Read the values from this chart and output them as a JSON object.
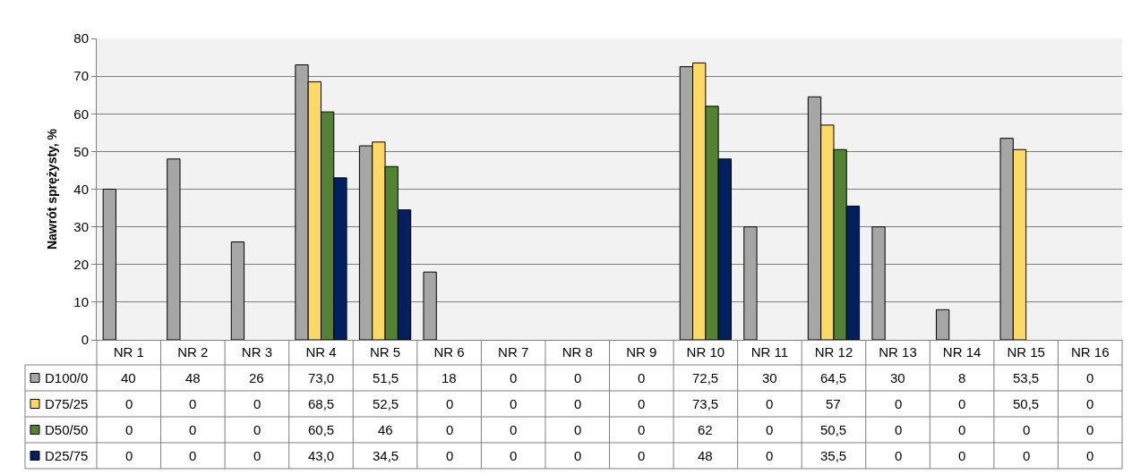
{
  "chart_data": {
    "type": "bar",
    "ylabel": "Nawrót sprężysty, %",
    "categories": [
      "NR 1",
      "NR 2",
      "NR 3",
      "NR 4",
      "NR 5",
      "NR 6",
      "NR 7",
      "NR 8",
      "NR 9",
      "NR 10",
      "NR 11",
      "NR 12",
      "NR 13",
      "NR 14",
      "NR 15",
      "NR 16"
    ],
    "series": [
      {
        "name": "D100/0",
        "color": "#a6a6a6",
        "values": [
          40,
          48,
          26,
          73.0,
          51.5,
          18,
          0,
          0,
          0,
          72.5,
          30,
          64.5,
          30,
          8,
          53.5,
          0
        ],
        "value_labels": [
          "40",
          "48",
          "26",
          "73,0",
          "51,5",
          "18",
          "0",
          "0",
          "0",
          "72,5",
          "30",
          "64,5",
          "30",
          "8",
          "53,5",
          "0"
        ]
      },
      {
        "name": "D75/25",
        "color": "#ffd966",
        "values": [
          0,
          0,
          0,
          68.5,
          52.5,
          0,
          0,
          0,
          0,
          73.5,
          0,
          57,
          0,
          0,
          50.5,
          0
        ],
        "value_labels": [
          "0",
          "0",
          "0",
          "68,5",
          "52,5",
          "0",
          "0",
          "0",
          "0",
          "73,5",
          "0",
          "57",
          "0",
          "0",
          "50,5",
          "0"
        ]
      },
      {
        "name": "D50/50",
        "color": "#548235",
        "values": [
          0,
          0,
          0,
          60.5,
          46,
          0,
          0,
          0,
          0,
          62,
          0,
          50.5,
          0,
          0,
          0,
          0
        ],
        "value_labels": [
          "0",
          "0",
          "0",
          "60,5",
          "46",
          "0",
          "0",
          "0",
          "0",
          "62",
          "0",
          "50,5",
          "0",
          "0",
          "0",
          "0"
        ]
      },
      {
        "name": "D25/75",
        "color": "#002060",
        "values": [
          0,
          0,
          0,
          43.0,
          34.5,
          0,
          0,
          0,
          0,
          48,
          0,
          35.5,
          0,
          0,
          0,
          0
        ],
        "value_labels": [
          "0",
          "0",
          "0",
          "43,0",
          "34,5",
          "0",
          "0",
          "0",
          "0",
          "48",
          "0",
          "35,5",
          "0",
          "0",
          "0",
          "0"
        ]
      }
    ],
    "ylim": [
      0,
      80
    ],
    "yticks": [
      0,
      10,
      20,
      30,
      40,
      50,
      60,
      70,
      80
    ],
    "grid": "y",
    "legend": "bottom left"
  }
}
